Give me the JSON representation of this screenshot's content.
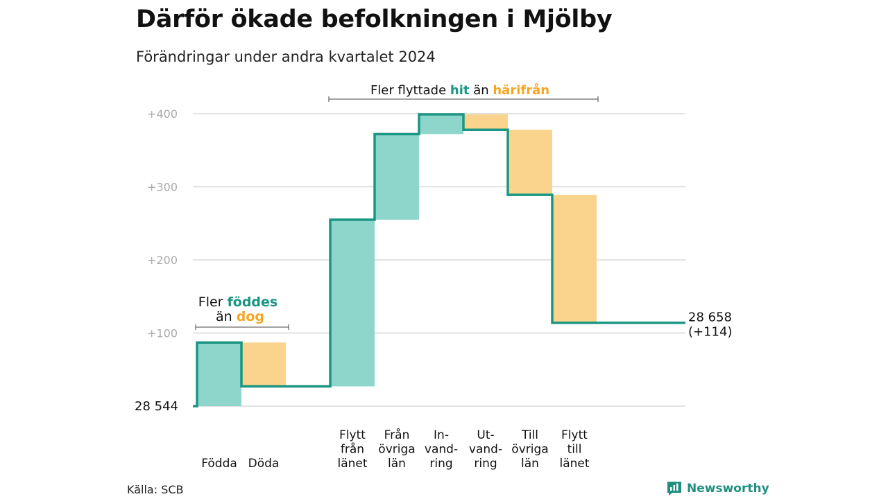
{
  "title": "Därför ökade befolkningen i Mjölby",
  "subtitle": "Förändringar under andra kvartalet 2024",
  "source": "Källa: SCB",
  "brand": "Newsworthy",
  "colors": {
    "increase_fill": "#8ed6cc",
    "decrease_fill": "#fad48c",
    "line": "#1a9682",
    "highlight_teal": "#1a9682",
    "highlight_orange": "#f5a623",
    "grid": "#d8d8d8",
    "tick_label": "#aaaaaa"
  },
  "chart_data": {
    "type": "waterfall",
    "start_label": "28  544",
    "end_label_line1": "28 658",
    "end_label_line2": "(+114)",
    "yticks": [
      {
        "value": 100,
        "label": "+100"
      },
      {
        "value": 200,
        "label": "+200"
      },
      {
        "value": 300,
        "label": "+300"
      },
      {
        "value": 400,
        "label": "+400"
      }
    ],
    "ylim": [
      0,
      400
    ],
    "steps": [
      {
        "label": [
          "Födda"
        ],
        "from": 0,
        "to": 87,
        "kind": "increase"
      },
      {
        "label": [
          "Döda"
        ],
        "from": 87,
        "to": 27,
        "kind": "decrease"
      },
      {
        "label": [],
        "from": 27,
        "to": 27,
        "kind": "none"
      },
      {
        "label": [
          "Flytt",
          "från",
          "länet"
        ],
        "from": 27,
        "to": 255,
        "kind": "increase"
      },
      {
        "label": [
          "Från",
          "övriga",
          "län"
        ],
        "from": 255,
        "to": 372,
        "kind": "increase"
      },
      {
        "label": [
          "In-",
          "vand-",
          "ring"
        ],
        "from": 372,
        "to": 399,
        "kind": "increase"
      },
      {
        "label": [
          "Ut-",
          "vand-",
          "ring"
        ],
        "from": 399,
        "to": 378,
        "kind": "decrease"
      },
      {
        "label": [
          "Till",
          "övriga",
          "län"
        ],
        "from": 378,
        "to": 289,
        "kind": "decrease"
      },
      {
        "label": [
          "Flytt",
          "till",
          "länet"
        ],
        "from": 289,
        "to": 114,
        "kind": "decrease"
      }
    ],
    "annotations": {
      "births": {
        "prefix": "Fler",
        "teal_word": "föddes",
        "line2_prefix": "än",
        "orange_word": "dog"
      },
      "migration": {
        "prefix": "Fler flyttade",
        "teal_word": "hit",
        "middle": "än",
        "orange_word": "härifrån"
      }
    }
  }
}
